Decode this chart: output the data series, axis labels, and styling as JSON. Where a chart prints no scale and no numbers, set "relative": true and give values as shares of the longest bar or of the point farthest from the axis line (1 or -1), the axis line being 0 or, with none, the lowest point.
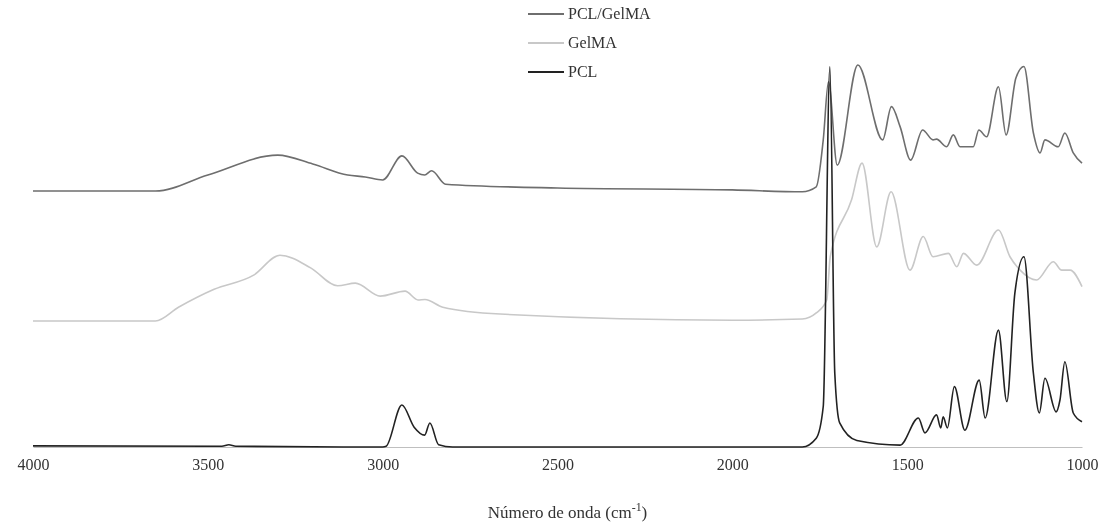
{
  "chart_data": {
    "type": "line",
    "relative": true,
    "xlabel": "Número de onda (cm$^{-1}$)",
    "xlim": [
      4000,
      1000
    ],
    "xticks": [
      4000,
      3500,
      3000,
      2500,
      2000,
      1500,
      1000
    ],
    "tick_labels": "x",
    "legend": "top",
    "grid": false,
    "marker": "none",
    "line_style": "solid",
    "series": [
      {
        "name": "PCL/GelMA",
        "color": "#6e6e6e",
        "x": [
          4000,
          3650,
          3500,
          3300,
          3200,
          3100,
          3050,
          3000,
          2945,
          2900,
          2880,
          2860,
          2820,
          2500,
          2000,
          1800,
          1760,
          1740,
          1725,
          1700,
          1641,
          1570,
          1545,
          1520,
          1490,
          1456,
          1426,
          1416,
          1387,
          1368,
          1349,
          1311,
          1295,
          1273,
          1239,
          1217,
          1189,
          1166,
          1139,
          1120,
          1106,
          1068,
          1049,
          1025,
          1000
        ],
        "values": [
          0.67,
          0.67,
          0.712,
          0.764,
          0.741,
          0.712,
          0.707,
          0.699,
          0.762,
          0.717,
          0.712,
          0.723,
          0.688,
          0.678,
          0.673,
          0.668,
          0.681,
          0.804,
          0.956,
          0.738,
          1.0,
          0.804,
          0.891,
          0.838,
          0.751,
          0.83,
          0.804,
          0.806,
          0.786,
          0.817,
          0.786,
          0.786,
          0.83,
          0.812,
          0.943,
          0.817,
          0.966,
          0.996,
          0.822,
          0.77,
          0.804,
          0.786,
          0.822,
          0.77,
          0.743
        ]
      },
      {
        "name": "GelMA",
        "color": "#c8c8c8",
        "x": [
          4000,
          3650,
          3584,
          3482,
          3369,
          3294,
          3206,
          3129,
          3078,
          3007,
          2936,
          2899,
          2879,
          2828,
          2664,
          2000,
          1800,
          1760,
          1730,
          1720,
          1659,
          1629,
          1587,
          1546,
          1492,
          1454,
          1426,
          1382,
          1358,
          1339,
          1301,
          1239,
          1206,
          1177,
          1130,
          1082,
          1058,
          1034,
          1000
        ],
        "values": [
          0.33,
          0.33,
          0.366,
          0.413,
          0.45,
          0.502,
          0.469,
          0.422,
          0.429,
          0.395,
          0.408,
          0.385,
          0.386,
          0.366,
          0.348,
          0.332,
          0.335,
          0.351,
          0.385,
          0.498,
          0.647,
          0.743,
          0.524,
          0.668,
          0.463,
          0.551,
          0.498,
          0.507,
          0.472,
          0.507,
          0.476,
          0.568,
          0.498,
          0.463,
          0.437,
          0.485,
          0.463,
          0.463,
          0.42
        ]
      },
      {
        "name": "PCL",
        "color": "#222222",
        "x": [
          4000,
          3460,
          3440,
          3420,
          3000,
          2990,
          2945,
          2910,
          2880,
          2865,
          2840,
          2800,
          1800,
          1760,
          1740,
          1721,
          1707,
          1693,
          1644,
          1520,
          1468,
          1449,
          1416,
          1404,
          1397,
          1385,
          1365,
          1335,
          1294,
          1277,
          1239,
          1215,
          1192,
          1166,
          1139,
          1122,
          1106,
          1074,
          1063,
          1049,
          1025,
          1000
        ],
        "values": [
          0.003,
          0.002,
          0.006,
          0.002,
          0.0,
          0.002,
          0.11,
          0.052,
          0.031,
          0.063,
          0.006,
          0.0,
          0.0,
          0.023,
          0.106,
          0.995,
          0.193,
          0.063,
          0.017,
          0.005,
          0.076,
          0.037,
          0.084,
          0.05,
          0.079,
          0.05,
          0.158,
          0.044,
          0.175,
          0.076,
          0.306,
          0.119,
          0.403,
          0.498,
          0.193,
          0.089,
          0.18,
          0.092,
          0.123,
          0.223,
          0.089,
          0.066
        ]
      }
    ]
  }
}
